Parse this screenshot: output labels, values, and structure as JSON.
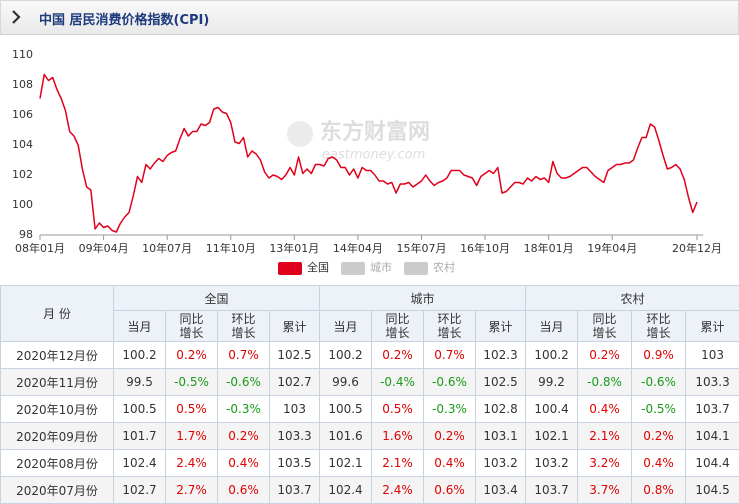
{
  "header": {
    "title": "中国 居民消费价格指数(CPI)"
  },
  "chart_data": {
    "type": "line",
    "categories": [
      "08年01月",
      null,
      null,
      null,
      null,
      null,
      null,
      null,
      null,
      null,
      null,
      null,
      null,
      null,
      null,
      "09年04月",
      null,
      null,
      null,
      null,
      null,
      null,
      null,
      null,
      null,
      null,
      null,
      null,
      null,
      null,
      "10年07月",
      null,
      null,
      null,
      null,
      null,
      null,
      null,
      null,
      null,
      null,
      null,
      null,
      null,
      null,
      "11年10月",
      null,
      null,
      null,
      null,
      null,
      null,
      null,
      null,
      null,
      null,
      null,
      null,
      null,
      null,
      "13年01月",
      null,
      null,
      null,
      null,
      null,
      null,
      null,
      null,
      null,
      null,
      null,
      null,
      null,
      null,
      "14年04月",
      null,
      null,
      null,
      null,
      null,
      null,
      null,
      null,
      null,
      null,
      null,
      null,
      null,
      null,
      "15年07月",
      null,
      null,
      null,
      null,
      null,
      null,
      null,
      null,
      null,
      null,
      null,
      null,
      null,
      null,
      "16年10月",
      null,
      null,
      null,
      null,
      null,
      null,
      null,
      null,
      null,
      null,
      null,
      null,
      null,
      null,
      "18年01月",
      null,
      null,
      null,
      null,
      null,
      null,
      null,
      null,
      null,
      null,
      null,
      null,
      null,
      null,
      "19年04月",
      null,
      null,
      null,
      null,
      null,
      null,
      null,
      null,
      null,
      null,
      null,
      null,
      null,
      null,
      null,
      null,
      null,
      null,
      null,
      "20年12月"
    ],
    "series": [
      {
        "name": "全国",
        "color": "#e0001b",
        "values": [
          107.1,
          108.7,
          108.3,
          108.5,
          107.7,
          107.1,
          106.3,
          104.9,
          104.6,
          104.0,
          102.4,
          101.2,
          101.0,
          98.4,
          98.8,
          98.5,
          98.6,
          98.3,
          98.2,
          98.8,
          99.2,
          99.5,
          100.6,
          101.9,
          101.5,
          102.7,
          102.4,
          102.8,
          103.1,
          102.9,
          103.3,
          103.5,
          103.6,
          104.4,
          105.1,
          104.6,
          104.9,
          104.9,
          105.4,
          105.3,
          105.5,
          106.4,
          106.5,
          106.2,
          106.1,
          105.5,
          104.2,
          104.1,
          104.5,
          103.2,
          103.6,
          103.4,
          103.0,
          102.2,
          101.8,
          102.0,
          101.9,
          101.7,
          102.0,
          102.5,
          102.0,
          103.2,
          102.1,
          102.4,
          102.1,
          102.7,
          102.7,
          102.6,
          103.1,
          103.2,
          103.0,
          102.5,
          102.5,
          102.0,
          102.4,
          101.8,
          102.5,
          102.3,
          102.3,
          102.0,
          101.6,
          101.6,
          101.4,
          101.5,
          100.8,
          101.4,
          101.4,
          101.5,
          101.2,
          101.4,
          101.6,
          102.0,
          101.6,
          101.3,
          101.5,
          101.6,
          101.8,
          102.3,
          102.3,
          102.3,
          102.0,
          101.9,
          101.8,
          101.3,
          101.9,
          102.1,
          102.3,
          102.1,
          102.5,
          100.8,
          100.9,
          101.2,
          101.5,
          101.5,
          101.4,
          101.8,
          101.6,
          101.9,
          101.7,
          101.8,
          101.5,
          102.9,
          102.1,
          101.8,
          101.8,
          101.9,
          102.1,
          102.3,
          102.5,
          102.5,
          102.2,
          101.9,
          101.7,
          101.5,
          102.3,
          102.5,
          102.7,
          102.7,
          102.8,
          102.8,
          103.0,
          103.8,
          104.5,
          104.5,
          105.4,
          105.2,
          104.3,
          103.3,
          102.4,
          102.5,
          102.7,
          102.4,
          101.7,
          100.5,
          99.5,
          100.2
        ]
      }
    ],
    "hidden_series": [
      {
        "name": "城市",
        "color": "#cccccc"
      },
      {
        "name": "农村",
        "color": "#cccccc"
      }
    ],
    "ylim": [
      98,
      110
    ],
    "yticks": [
      98,
      100,
      102,
      104,
      106,
      108,
      110
    ],
    "grid": false,
    "legend": "bottom",
    "watermark": {
      "brand": "东方财富网",
      "url": "eastmoney.com"
    }
  },
  "table": {
    "month_header": "月 份",
    "groups": [
      "全国",
      "城市",
      "农村"
    ],
    "subheaders": [
      "当月",
      "同比增长",
      "环比增长",
      "累计"
    ],
    "rows": [
      [
        "2020年12月份",
        "100.2",
        "0.2%",
        "0.7%",
        "102.5",
        "100.2",
        "0.2%",
        "0.7%",
        "102.3",
        "100.2",
        "0.2%",
        "0.9%",
        "103"
      ],
      [
        "2020年11月份",
        "99.5",
        "-0.5%",
        "-0.6%",
        "102.7",
        "99.6",
        "-0.4%",
        "-0.6%",
        "102.5",
        "99.2",
        "-0.8%",
        "-0.6%",
        "103.3"
      ],
      [
        "2020年10月份",
        "100.5",
        "0.5%",
        "-0.3%",
        "103",
        "100.5",
        "0.5%",
        "-0.3%",
        "102.8",
        "100.4",
        "0.4%",
        "-0.5%",
        "103.7"
      ],
      [
        "2020年09月份",
        "101.7",
        "1.7%",
        "0.2%",
        "103.3",
        "101.6",
        "1.6%",
        "0.2%",
        "103.1",
        "102.1",
        "2.1%",
        "0.2%",
        "104.1"
      ],
      [
        "2020年08月份",
        "102.4",
        "2.4%",
        "0.4%",
        "103.5",
        "102.1",
        "2.1%",
        "0.4%",
        "103.2",
        "103.2",
        "3.2%",
        "0.4%",
        "104.4"
      ],
      [
        "2020年07月份",
        "102.7",
        "2.7%",
        "0.6%",
        "103.7",
        "102.4",
        "2.4%",
        "0.6%",
        "103.4",
        "103.7",
        "3.7%",
        "0.8%",
        "104.5"
      ]
    ]
  }
}
